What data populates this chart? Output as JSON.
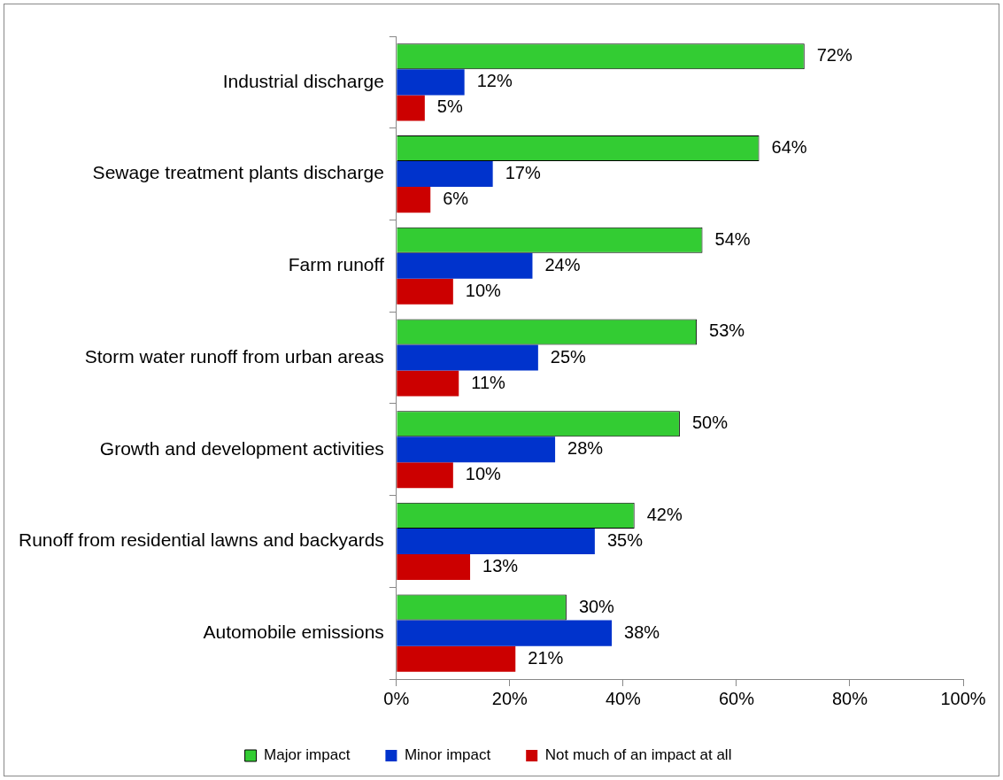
{
  "chart_data": {
    "type": "bar",
    "orientation": "horizontal",
    "categories": [
      "Industrial discharge",
      "Sewage treatment plants discharge",
      "Farm runoff",
      "Storm water runoff from urban areas",
      "Growth and development activities",
      "Runoff from residential lawns and backyards",
      "Automobile emissions"
    ],
    "series": [
      {
        "name": "Major impact",
        "color": "#33cc33",
        "values": [
          72,
          64,
          54,
          53,
          50,
          42,
          30
        ],
        "value_labels": [
          "72%",
          "64%",
          "54%",
          "53%",
          "50%",
          "42%",
          "30%"
        ]
      },
      {
        "name": "Minor impact",
        "color": "#0033cc",
        "values": [
          12,
          17,
          24,
          25,
          28,
          35,
          38
        ],
        "value_labels": [
          "12%",
          "17%",
          "24%",
          "25%",
          "28%",
          "35%",
          "38%"
        ]
      },
      {
        "name": "Not much of an impact at all",
        "color": "#cc0000",
        "values": [
          5,
          6,
          10,
          11,
          10,
          13,
          21
        ],
        "value_labels": [
          "5%",
          "6%",
          "10%",
          "11%",
          "10%",
          "13%",
          "21%"
        ]
      }
    ],
    "xlim": [
      0,
      100
    ],
    "xticks": [
      {
        "value": 0,
        "label": "0%"
      },
      {
        "value": 20,
        "label": "20%"
      },
      {
        "value": 40,
        "label": "40%"
      },
      {
        "value": 60,
        "label": "60%"
      },
      {
        "value": 80,
        "label": "80%"
      },
      {
        "value": 100,
        "label": "100%"
      }
    ],
    "grid": false,
    "legend": "bottom"
  }
}
